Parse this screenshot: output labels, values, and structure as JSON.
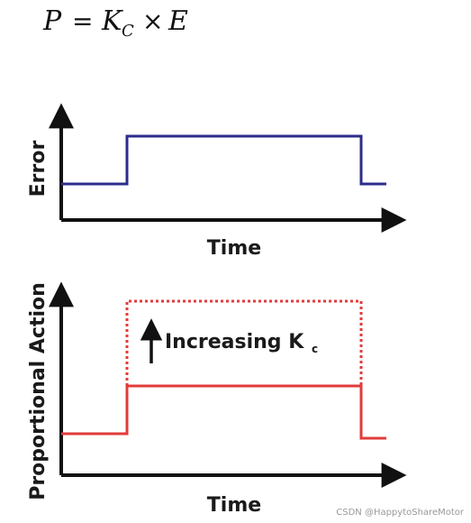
{
  "formula": {
    "lhs": "P",
    "equals": "=",
    "k": "K",
    "k_sub": "C",
    "times": "×",
    "rhs": "E"
  },
  "top_plot": {
    "ylabel": "Error",
    "xlabel": "Time",
    "line_color": "#2c2c8c"
  },
  "bottom_plot": {
    "ylabel": "Proportional Action",
    "xlabel": "Time",
    "line_color": "#e23b3b",
    "annotation": "Increasing K",
    "annotation_sub": "c"
  },
  "axis_color": "#111111",
  "watermark": "CSDN @HappytoShareMotor"
}
